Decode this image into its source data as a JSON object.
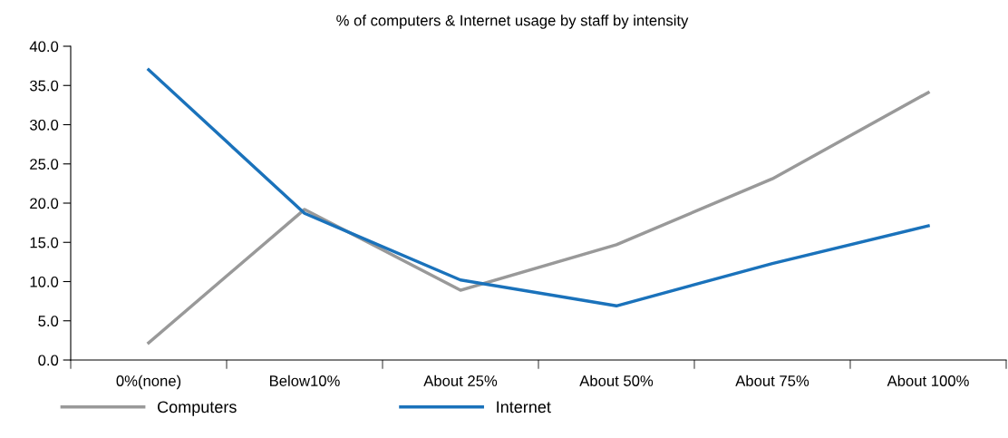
{
  "chart_data": {
    "type": "line",
    "title": "% of computers & Internet usage by staff by intensity",
    "categories": [
      "0%(none)",
      "Below10%",
      "About 25%",
      "About 50%",
      "About 75%",
      "About 100%"
    ],
    "series": [
      {
        "name": "Computers",
        "color": "#999999",
        "values": [
          2.2,
          19.2,
          8.9,
          14.7,
          23.1,
          34.1
        ]
      },
      {
        "name": "Internet",
        "color": "#1a72bb",
        "values": [
          37.0,
          18.7,
          10.2,
          6.9,
          12.3,
          17.1
        ]
      }
    ],
    "ylim": [
      0,
      40
    ],
    "yticks": [
      {
        "value": 0,
        "label": "0.0"
      },
      {
        "value": 5,
        "label": "5.0"
      },
      {
        "value": 10,
        "label": "10.0"
      },
      {
        "value": 15,
        "label": "15.0"
      },
      {
        "value": 20,
        "label": "20.0"
      },
      {
        "value": 25,
        "label": "25.0"
      },
      {
        "value": 30,
        "label": "30.0"
      },
      {
        "value": 35,
        "label": "35.0"
      },
      {
        "value": 40,
        "label": "40.0"
      }
    ],
    "grid": false,
    "legend": "bottom",
    "marker": "none",
    "line_style": "solid"
  }
}
